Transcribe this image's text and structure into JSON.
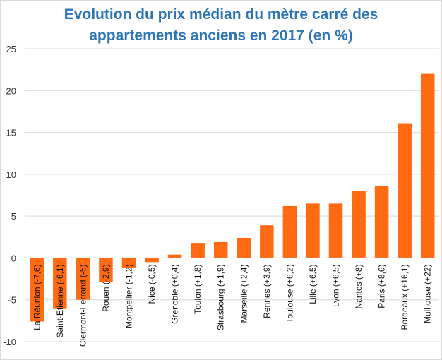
{
  "chart_data": {
    "type": "bar",
    "title_line1": "Evolution du prix médian du mètre carré des",
    "title_line2": "appartements anciens en 2017 (en %)",
    "categories": [
      "La Réunion (-7,6)",
      "Saint-Etienne (-6,1)",
      "Clermont-Ferrand (-5)",
      "Rouen (-2,9)",
      "Montpellier (-1,2)",
      "Nice (-0,5)",
      "Grenoble (+0,4)",
      "Toulon (+1,8)",
      "Strasbourg (+1,9)",
      "Marseille (+2,4)",
      "Rennes (+3,9)",
      "Toulouse (+6,2)",
      "Lille (+6,5)",
      "Lyon (+6,5)",
      "Nantes (+8)",
      "Paris (+8,6)",
      "Bordeaux (+16,1)",
      "Mulhouse (+22)"
    ],
    "values": [
      -7.6,
      -6.1,
      -5,
      -2.9,
      -1.2,
      -0.5,
      0.4,
      1.8,
      1.9,
      2.4,
      3.9,
      6.2,
      6.5,
      6.5,
      8,
      8.6,
      16.1,
      22
    ],
    "ylim": [
      -10,
      25
    ],
    "yticks": [
      -10,
      -5,
      0,
      5,
      10,
      15,
      20,
      25
    ],
    "grid": true,
    "bar_color": "#ff6a13",
    "title_color": "#2e75b6",
    "grid_color": "#d9d9d9"
  }
}
